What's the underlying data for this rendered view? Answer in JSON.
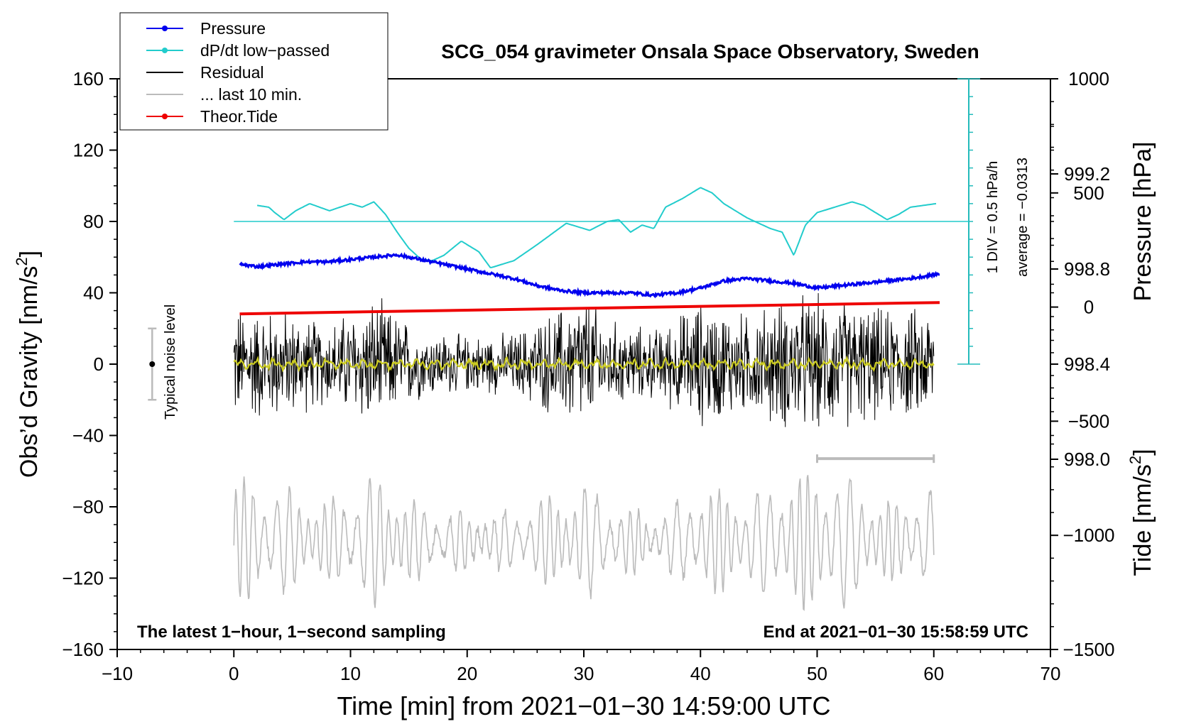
{
  "chart_data": {
    "type": "line",
    "title": "SCG_054 gravimeter Onsala Space Observatory, Sweden",
    "xlabel": "Time [min] from 2021−01−30 14:59:00 UTC",
    "xlim": [
      -10,
      70
    ],
    "xticks": [
      "−10",
      "0",
      "10",
      "20",
      "30",
      "40",
      "50",
      "60",
      "70"
    ],
    "xtick_values": [
      -10,
      0,
      10,
      20,
      30,
      40,
      50,
      60,
      70
    ],
    "y_left": {
      "label": "Obs’d Gravity [nm/s",
      "label_sup": "2",
      "label_end": "]",
      "lim": [
        -160,
        160
      ],
      "ticks": [
        "160",
        "120",
        "80",
        "40",
        "0",
        "−40",
        "−80",
        "−120",
        "−160"
      ],
      "tick_values": [
        160,
        120,
        80,
        40,
        0,
        -40,
        -80,
        -120,
        -160
      ]
    },
    "y_right_pressure": {
      "label": "Pressure [hPa]",
      "lim": [
        997.2,
        999.6
      ],
      "ticks": [
        "999.2",
        "998.8",
        "998.4",
        "998.0"
      ],
      "tick_values": [
        999.2,
        998.8,
        998.4,
        998.0
      ]
    },
    "y_right_tide": {
      "label": "Tide [nm/s",
      "label_sup": "2",
      "label_end": "]",
      "lim": [
        -1500,
        1000
      ],
      "ticks": [
        "1000",
        "500",
        "0",
        "−500",
        "−1000",
        "−1500"
      ],
      "tick_values": [
        1000,
        500,
        0,
        -500,
        -1000,
        -1500
      ]
    },
    "legend": {
      "placement": "top-left",
      "entries": [
        {
          "label": "Pressure",
          "color": "#0000ee",
          "marker": true
        },
        {
          "label": "dP/dt low−passed",
          "color": "#22cccc",
          "marker": true
        },
        {
          "label": "Residual",
          "color": "#000000",
          "marker": false
        },
        {
          "label": "... last 10 min.",
          "color": "#bbbbbb",
          "marker": false
        },
        {
          "label": "Theor.Tide",
          "color": "#ee0000",
          "marker": true
        }
      ]
    },
    "scale_bar": {
      "label": "1 DIV = 0.5 hPa/h",
      "average_label": "average = −0.0313",
      "divisions": 16
    },
    "noise_bar": {
      "label": "Typical noise level",
      "x": -7,
      "center": 0,
      "half_range": 20
    },
    "last10_bar": {
      "x_start": 50,
      "x_end": 60,
      "y": -53
    },
    "footnote_left": "The latest 1−hour, 1−second sampling",
    "footnote_right": "End at 2021−01−30 15:58:59 UTC",
    "series": [
      {
        "name": "Pressure",
        "axis": "pressure_hPa",
        "color": "#0000ee",
        "x": [
          0.5,
          2,
          4,
          6,
          8,
          10,
          12,
          14,
          16,
          18,
          20,
          22,
          24,
          26,
          28,
          30,
          32,
          34,
          36,
          38,
          40,
          42,
          44,
          46,
          48,
          50,
          52,
          54,
          56,
          58,
          60.5
        ],
        "values": [
          998.82,
          998.81,
          998.82,
          998.83,
          998.83,
          998.84,
          998.85,
          998.86,
          998.84,
          998.82,
          998.8,
          998.78,
          998.76,
          998.73,
          998.71,
          998.7,
          998.7,
          998.7,
          998.69,
          998.7,
          998.72,
          998.75,
          998.76,
          998.75,
          998.74,
          998.72,
          998.73,
          998.74,
          998.75,
          998.76,
          998.78
        ]
      },
      {
        "name": "dP/dt low−passed",
        "axis": "pressure_rate",
        "color": "#22cccc",
        "baseline_y_grav": 80,
        "x": [
          2,
          3,
          3.5,
          4.3,
          5.3,
          6.5,
          8.2,
          10,
          11,
          12,
          13,
          14,
          15,
          16,
          17,
          18,
          19.5,
          21,
          22,
          24,
          26,
          28.5,
          30.5,
          32,
          33,
          34,
          35,
          36,
          37,
          38.5,
          40,
          41,
          42,
          44,
          46,
          47,
          48,
          49,
          50,
          51.5,
          53,
          54,
          55,
          56,
          57,
          58,
          60.2
        ],
        "values": [
          89,
          88,
          85,
          81,
          86,
          90,
          86,
          90,
          88,
          91,
          84,
          74,
          65,
          59,
          58,
          61,
          69,
          63,
          54,
          58,
          67,
          79,
          75,
          80,
          81,
          74,
          78,
          76,
          88,
          93,
          99,
          96,
          90,
          82,
          76,
          74,
          61,
          78,
          85,
          88,
          91,
          89,
          85,
          81,
          84,
          88,
          90
        ]
      },
      {
        "name": "Residual",
        "axis": "gravity",
        "color": "#000000",
        "x_range": [
          0,
          60
        ],
        "amplitude_envelope_x": [
          0,
          4,
          8,
          12,
          16,
          20,
          24,
          28,
          30,
          32,
          36,
          40,
          44,
          48,
          52,
          56,
          60
        ],
        "amplitude_envelope": [
          38,
          35,
          26,
          42,
          22,
          18,
          20,
          36,
          46,
          28,
          22,
          40,
          32,
          44,
          42,
          34,
          36
        ]
      },
      {
        "name": "Theor.Tide",
        "axis": "tide",
        "color": "#ee0000",
        "x": [
          0.5,
          60.5
        ],
        "values": [
          -30,
          20
        ]
      },
      {
        "name": "... last 10 min.",
        "axis": "gravity",
        "color": "#bbbbbb",
        "x_range": [
          0,
          60
        ],
        "center": -99,
        "amplitude_envelope_x": [
          0,
          4,
          8,
          12,
          16,
          20,
          24,
          28,
          30,
          32,
          36,
          40,
          44,
          48,
          52,
          56,
          60
        ],
        "amplitude_envelope": [
          36,
          30,
          22,
          38,
          20,
          16,
          18,
          26,
          34,
          24,
          14,
          30,
          26,
          38,
          40,
          22,
          30
        ]
      }
    ]
  }
}
